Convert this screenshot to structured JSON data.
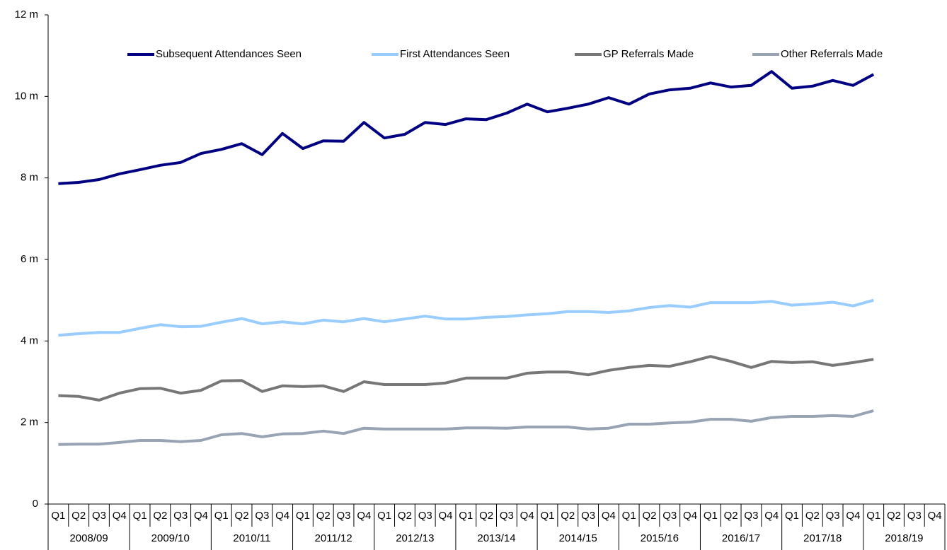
{
  "chart_data": {
    "type": "line",
    "categories": [
      "Q1",
      "Q2",
      "Q3",
      "Q4",
      "Q1",
      "Q2",
      "Q3",
      "Q4",
      "Q1",
      "Q2",
      "Q3",
      "Q4",
      "Q1",
      "Q2",
      "Q3",
      "Q4",
      "Q1",
      "Q2",
      "Q3",
      "Q4",
      "Q1",
      "Q2",
      "Q3",
      "Q4",
      "Q1",
      "Q2",
      "Q3",
      "Q4",
      "Q1",
      "Q2",
      "Q3",
      "Q4",
      "Q1",
      "Q2",
      "Q3",
      "Q4",
      "Q1",
      "Q2",
      "Q3",
      "Q4",
      "Q1",
      "Q2",
      "Q3",
      "Q4"
    ],
    "groups": [
      "2008/09",
      "2009/10",
      "2010/11",
      "2011/12",
      "2012/13",
      "2013/14",
      "2014/15",
      "2015/16",
      "2016/17",
      "2017/18",
      "2018/19"
    ],
    "series": [
      {
        "name": "Subsequent Attendances Seen",
        "color": "#000080",
        "values": [
          7.86,
          7.89,
          7.96,
          8.1,
          8.2,
          8.31,
          8.38,
          8.6,
          8.7,
          8.84,
          8.57,
          9.09,
          8.72,
          8.91,
          8.9,
          9.36,
          8.98,
          9.07,
          9.36,
          9.31,
          9.45,
          9.43,
          9.59,
          9.81,
          9.62,
          9.71,
          9.81,
          9.97,
          9.81,
          10.06,
          10.16,
          10.2,
          10.33,
          10.23,
          10.27,
          10.61,
          10.2,
          10.25,
          10.39,
          10.27,
          10.54,
          null,
          null,
          null
        ]
      },
      {
        "name": "First Attendances Seen",
        "color": "#99ccff",
        "values": [
          4.14,
          4.18,
          4.21,
          4.21,
          4.31,
          4.4,
          4.35,
          4.36,
          4.46,
          4.55,
          4.42,
          4.47,
          4.42,
          4.51,
          4.47,
          4.55,
          4.47,
          4.54,
          4.61,
          4.54,
          4.54,
          4.58,
          4.6,
          4.64,
          4.67,
          4.72,
          4.72,
          4.7,
          4.74,
          4.82,
          4.87,
          4.83,
          4.94,
          4.94,
          4.94,
          4.97,
          4.88,
          4.91,
          4.95,
          4.86,
          5.0,
          null,
          null,
          null
        ]
      },
      {
        "name": "GP Referrals Made",
        "color": "#777777",
        "values": [
          2.66,
          2.64,
          2.55,
          2.72,
          2.83,
          2.84,
          2.72,
          2.79,
          3.02,
          3.03,
          2.76,
          2.9,
          2.88,
          2.9,
          2.76,
          3.0,
          2.93,
          2.93,
          2.93,
          2.97,
          3.09,
          3.09,
          3.09,
          3.21,
          3.24,
          3.24,
          3.17,
          3.28,
          3.35,
          3.4,
          3.38,
          3.49,
          3.62,
          3.5,
          3.35,
          3.5,
          3.47,
          3.49,
          3.4,
          3.47,
          3.55,
          null,
          null,
          null
        ]
      },
      {
        "name": "Other Referrals Made",
        "color": "#98a4b4",
        "values": [
          1.46,
          1.47,
          1.47,
          1.51,
          1.56,
          1.56,
          1.53,
          1.56,
          1.7,
          1.73,
          1.65,
          1.72,
          1.73,
          1.79,
          1.73,
          1.86,
          1.84,
          1.84,
          1.84,
          1.84,
          1.87,
          1.87,
          1.86,
          1.89,
          1.89,
          1.89,
          1.84,
          1.86,
          1.96,
          1.96,
          1.99,
          2.01,
          2.08,
          2.08,
          2.03,
          2.12,
          2.15,
          2.15,
          2.17,
          2.15,
          2.29,
          null,
          null,
          null
        ]
      }
    ],
    "ylim": [
      0,
      12
    ],
    "yticks": [
      0,
      {
        "value": 2,
        "label": "2 m"
      },
      {
        "value": 4,
        "label": "4 m"
      },
      {
        "value": 6,
        "label": "6 m"
      },
      {
        "value": 8,
        "label": "8 m"
      },
      {
        "value": 10,
        "label": "10 m"
      },
      {
        "value": 12,
        "label": "12 m"
      }
    ],
    "grid": false,
    "legend": "top"
  }
}
